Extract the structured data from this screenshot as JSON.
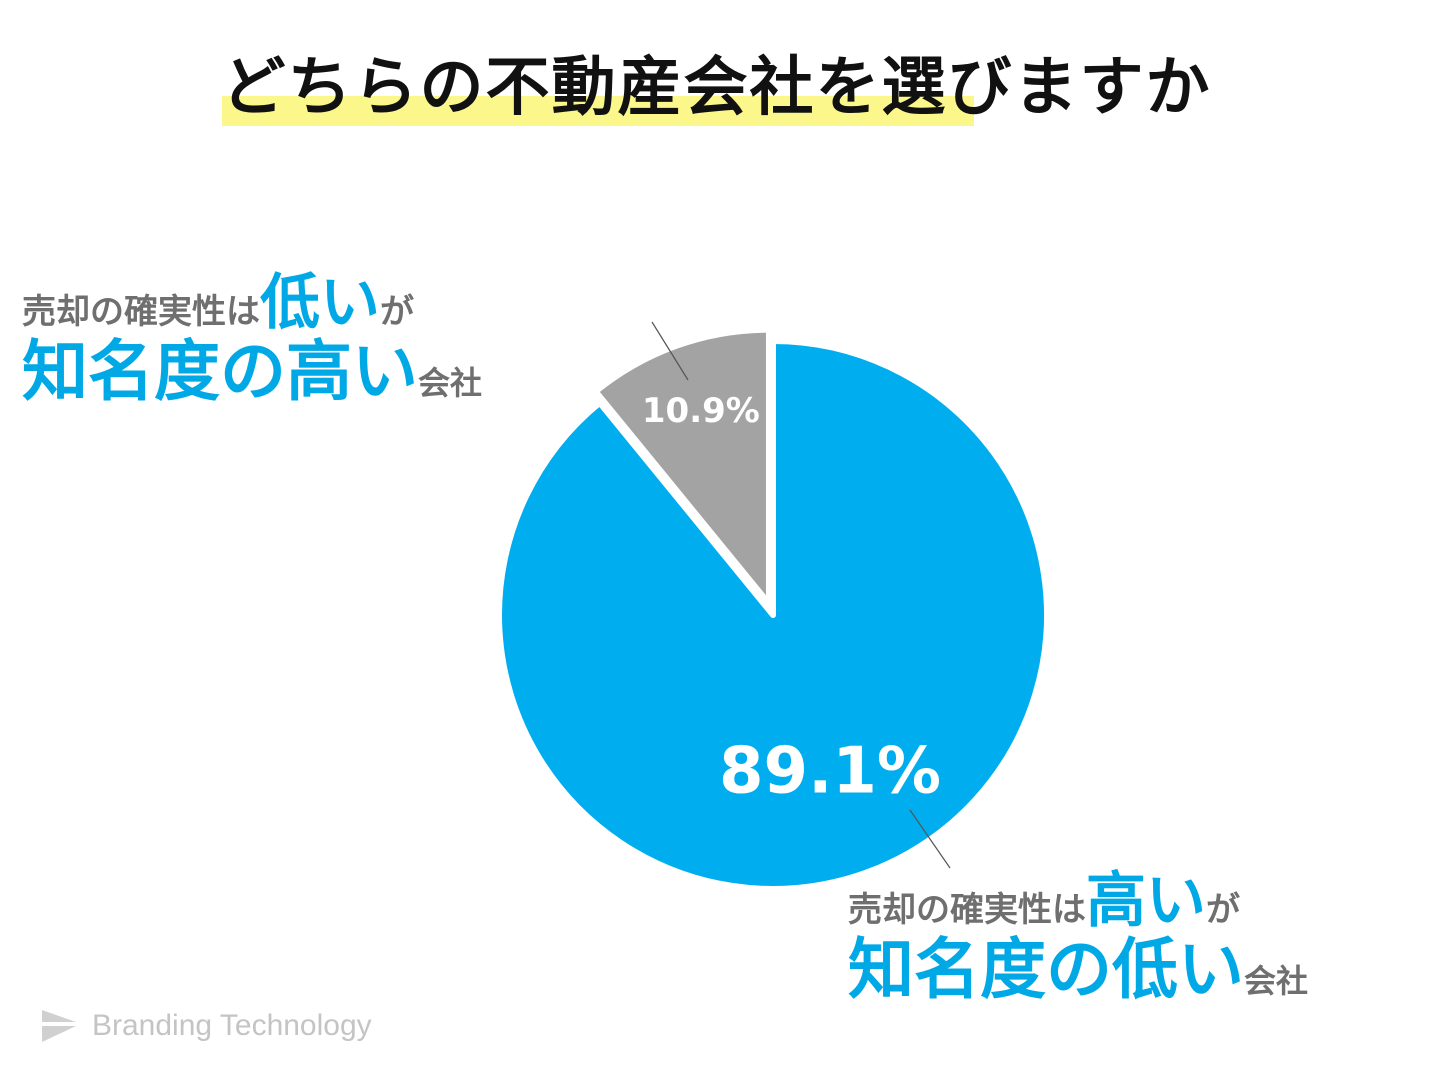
{
  "title": "どちらの不動産会社を選びますか",
  "chart_data": {
    "type": "pie",
    "slices": [
      {
        "label": "売却の確実性は高いが知名度の低い会社",
        "value": 89.1,
        "display": "89.1%",
        "color": "#00aeef"
      },
      {
        "label": "売却の確実性は低いが知名度の高い会社",
        "value": 10.9,
        "display": "10.9%",
        "color": "#a3a3a3"
      }
    ]
  },
  "labels": {
    "minor": {
      "prefix": "売却の確実性は",
      "emph": "低い",
      "suffix": "が",
      "line2_emph": "知名度の高い",
      "line2_suffix": "会社"
    },
    "major": {
      "prefix": "売却の確実性は",
      "emph": "高い",
      "suffix": "が",
      "line2_emph": "知名度の低い",
      "line2_suffix": "会社"
    }
  },
  "brand": {
    "name": "Branding Technology",
    "icon": "paper-plane-logo-icon"
  }
}
